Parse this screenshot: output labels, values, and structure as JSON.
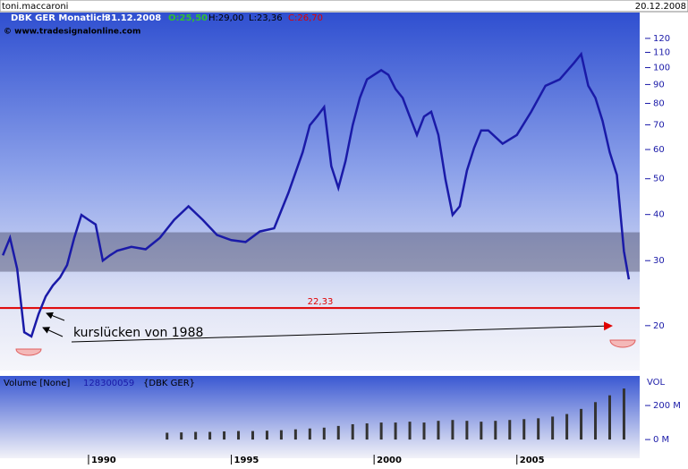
{
  "header": {
    "user": "toni.maccaroni",
    "date": "20.12.2008"
  },
  "chart_data": [
    {
      "type": "line",
      "title": "DBK GER Monatlich",
      "date": "31.12.2008",
      "quote": [
        "O:25,50",
        "H:29,00",
        "L:23,36",
        "C:26,70"
      ],
      "source": "© www.tradesignalonline.com",
      "color": "#1a1aa8",
      "log_scale": true,
      "x": [
        1987.0,
        1987.25,
        1987.5,
        1987.75,
        1988.0,
        1988.25,
        1988.5,
        1988.75,
        1989.0,
        1989.25,
        1989.5,
        1989.75,
        1990.0,
        1990.25,
        1990.5,
        1990.75,
        1991.0,
        1991.5,
        1992.0,
        1992.5,
        1993.0,
        1993.5,
        1994.0,
        1994.5,
        1995.0,
        1995.5,
        1996.0,
        1996.5,
        1997.0,
        1997.5,
        1997.75,
        1998.0,
        1998.25,
        1998.5,
        1998.75,
        1999.0,
        1999.25,
        1999.5,
        1999.75,
        2000.0,
        2000.25,
        2000.5,
        2000.75,
        2001.0,
        2001.25,
        2001.5,
        2001.75,
        2002.0,
        2002.25,
        2002.5,
        2002.75,
        2003.0,
        2003.25,
        2003.5,
        2003.75,
        2004.0,
        2004.5,
        2005.0,
        2005.5,
        2006.0,
        2006.5,
        2007.0,
        2007.25,
        2007.5,
        2007.75,
        2008.0,
        2008.25,
        2008.5,
        2008.75,
        2008.92
      ],
      "values": [
        31,
        34.6,
        28.5,
        19.2,
        18.7,
        21.5,
        24,
        25.7,
        27,
        29.2,
        34.6,
        39.9,
        38.7,
        37.6,
        30,
        31,
        31.9,
        32.7,
        32.2,
        34.6,
        38.7,
        42.1,
        38.7,
        35.2,
        34.1,
        33.7,
        36,
        36.7,
        45.8,
        59,
        69.8,
        73.7,
        78.2,
        54.1,
        47.2,
        55.8,
        69.8,
        82.8,
        92.9,
        95.6,
        98.4,
        95.6,
        87.5,
        82.8,
        73.7,
        65.7,
        73.7,
        75.9,
        65.7,
        49.8,
        39.9,
        42.1,
        52.6,
        60.6,
        67.6,
        67.6,
        62.2,
        65.7,
        75.9,
        89.3,
        92.9,
        103,
        108.8,
        89.3,
        82.8,
        71.7,
        59,
        51.2,
        31.8,
        26.7
      ],
      "xlim": [
        1986.9,
        2009.3
      ],
      "ylim": [
        15.2,
        141
      ],
      "yticks": [
        20,
        30,
        40,
        50,
        60,
        70,
        80,
        90,
        100,
        110,
        120
      ],
      "band": [
        28.0,
        35.8
      ],
      "reference_line": {
        "value": 22.33,
        "label": "22,33",
        "color": "#e00000"
      },
      "annotation": "kurslücken von 1988"
    },
    {
      "type": "bar",
      "title": "Volume [None]",
      "last_value": "128300059",
      "symbol": "{DBK GER}",
      "axis_label": "VOL",
      "color": "#333333",
      "x": [
        1992.75,
        1993.25,
        1993.75,
        1994.25,
        1994.75,
        1995.25,
        1995.75,
        1996.25,
        1996.75,
        1997.25,
        1997.75,
        1998.25,
        1998.75,
        1999.25,
        1999.75,
        2000.25,
        2000.75,
        2001.25,
        2001.75,
        2002.25,
        2002.75,
        2003.25,
        2003.75,
        2004.25,
        2004.75,
        2005.25,
        2005.75,
        2006.25,
        2006.75,
        2007.25,
        2007.75,
        2008.25,
        2008.75
      ],
      "values": [
        40,
        42,
        45,
        45,
        48,
        50,
        50,
        52,
        55,
        60,
        65,
        70,
        80,
        90,
        95,
        100,
        100,
        105,
        100,
        110,
        115,
        110,
        105,
        110,
        115,
        120,
        125,
        135,
        150,
        180,
        220,
        260,
        300
      ],
      "xlim": [
        1986.9,
        2009.3
      ],
      "ylim": [
        -110,
        374
      ],
      "yticks": [
        {
          "value": 0,
          "label": "0 M"
        },
        {
          "value": 200,
          "label": "200 M"
        }
      ],
      "xticks": [
        1990,
        1995,
        2000,
        2005
      ]
    }
  ]
}
